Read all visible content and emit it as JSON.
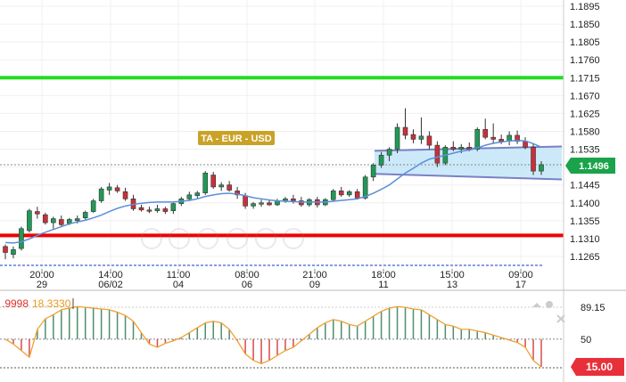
{
  "chart_data": {
    "type": "candlestick",
    "instrument_label": "TA - EUR - USD",
    "current_price_label": "1.1496",
    "y_ticks": [
      "1.1895",
      "1.1850",
      "1.1805",
      "1.1760",
      "1.1715",
      "1.1670",
      "1.1625",
      "1.1580",
      "1.1535",
      "1.1490",
      "1.1445",
      "1.1400",
      "1.1355",
      "1.1310",
      "1.1265"
    ],
    "x_ticks": [
      {
        "time": "20:00",
        "day": "29"
      },
      {
        "time": "14:00",
        "day": "06/02"
      },
      {
        "time": "11:00",
        "day": "04"
      },
      {
        "time": "08:00",
        "day": "06"
      },
      {
        "time": "21:00",
        "day": "09"
      },
      {
        "time": "18:00",
        "day": "11"
      },
      {
        "time": "15:00",
        "day": "13"
      },
      {
        "time": "09:00",
        "day": "17"
      }
    ],
    "ylim": [
      1.1245,
      1.1915
    ],
    "levels": {
      "resistance": 1.1715,
      "support": 1.1318,
      "lower_dotted": 1.1242,
      "price_line": 1.1496
    },
    "channel": {
      "upper": [
        [
          0,
          1.1531
        ],
        [
          1,
          1.1542
        ]
      ],
      "lower": [
        [
          0,
          1.1473
        ],
        [
          1,
          1.1459
        ]
      ]
    },
    "candles": [
      [
        1.129,
        1.1295,
        1.1258,
        1.1275
      ],
      [
        1.127,
        1.129,
        1.126,
        1.1282
      ],
      [
        1.1285,
        1.134,
        1.128,
        1.1335
      ],
      [
        1.133,
        1.1385,
        1.1325,
        1.138
      ],
      [
        1.1378,
        1.139,
        1.136,
        1.1372
      ],
      [
        1.137,
        1.1375,
        1.1345,
        1.135
      ],
      [
        1.135,
        1.1365,
        1.1335,
        1.136
      ],
      [
        1.1358,
        1.1368,
        1.134,
        1.1345
      ],
      [
        1.1348,
        1.1362,
        1.1344,
        1.1358
      ],
      [
        1.1355,
        1.1368,
        1.1348,
        1.136
      ],
      [
        1.1362,
        1.138,
        1.1358,
        1.1376
      ],
      [
        1.1378,
        1.141,
        1.1375,
        1.1405
      ],
      [
        1.1405,
        1.144,
        1.14,
        1.1435
      ],
      [
        1.1432,
        1.145,
        1.142,
        1.144
      ],
      [
        1.1438,
        1.1445,
        1.1425,
        1.143
      ],
      [
        1.1428,
        1.1438,
        1.1405,
        1.141
      ],
      [
        1.141,
        1.142,
        1.138,
        1.1385
      ],
      [
        1.1388,
        1.1395,
        1.1378,
        1.1382
      ],
      [
        1.1382,
        1.139,
        1.1374,
        1.138
      ],
      [
        1.138,
        1.1395,
        1.1375,
        1.1385
      ],
      [
        1.1385,
        1.139,
        1.1372,
        1.1378
      ],
      [
        1.138,
        1.14,
        1.1372,
        1.1398
      ],
      [
        1.1398,
        1.1415,
        1.1392,
        1.141
      ],
      [
        1.141,
        1.1428,
        1.1405,
        1.142
      ],
      [
        1.1418,
        1.143,
        1.1412,
        1.1425
      ],
      [
        1.1425,
        1.148,
        1.142,
        1.1475
      ],
      [
        1.147,
        1.1478,
        1.1435,
        1.144
      ],
      [
        1.144,
        1.1452,
        1.143,
        1.1445
      ],
      [
        1.1445,
        1.1455,
        1.1428,
        1.1432
      ],
      [
        1.143,
        1.144,
        1.141,
        1.142
      ],
      [
        1.1418,
        1.1425,
        1.1385,
        1.1392
      ],
      [
        1.1392,
        1.1402,
        1.1385,
        1.1398
      ],
      [
        1.1398,
        1.1408,
        1.139,
        1.14
      ],
      [
        1.14,
        1.1408,
        1.1392,
        1.1395
      ],
      [
        1.1395,
        1.141,
        1.1392,
        1.1405
      ],
      [
        1.1405,
        1.1415,
        1.14,
        1.141
      ],
      [
        1.141,
        1.142,
        1.1398,
        1.1405
      ],
      [
        1.1405,
        1.1415,
        1.139,
        1.1395
      ],
      [
        1.1395,
        1.1412,
        1.139,
        1.1408
      ],
      [
        1.1408,
        1.1415,
        1.1388,
        1.1395
      ],
      [
        1.1395,
        1.1412,
        1.1392,
        1.1408
      ],
      [
        1.1408,
        1.1435,
        1.1405,
        1.143
      ],
      [
        1.143,
        1.144,
        1.1415,
        1.142
      ],
      [
        1.142,
        1.1432,
        1.1415,
        1.1428
      ],
      [
        1.1428,
        1.1435,
        1.1408,
        1.1412
      ],
      [
        1.1412,
        1.147,
        1.1408,
        1.1465
      ],
      [
        1.1465,
        1.15,
        1.1455,
        1.1495
      ],
      [
        1.1495,
        1.1528,
        1.1488,
        1.152
      ],
      [
        1.152,
        1.154,
        1.1505,
        1.1535
      ],
      [
        1.1535,
        1.16,
        1.1525,
        1.159
      ],
      [
        1.159,
        1.1638,
        1.156,
        1.157
      ],
      [
        1.1572,
        1.1585,
        1.155,
        1.156
      ],
      [
        1.156,
        1.1615,
        1.1548,
        1.1568
      ],
      [
        1.1568,
        1.158,
        1.1535,
        1.1545
      ],
      [
        1.1545,
        1.1555,
        1.149,
        1.15
      ],
      [
        1.15,
        1.1545,
        1.1495,
        1.154
      ],
      [
        1.154,
        1.1555,
        1.153,
        1.1535
      ],
      [
        1.1535,
        1.1548,
        1.1525,
        1.154
      ],
      [
        1.154,
        1.1552,
        1.153,
        1.1535
      ],
      [
        1.1535,
        1.159,
        1.153,
        1.1585
      ],
      [
        1.1585,
        1.1612,
        1.156,
        1.1565
      ],
      [
        1.1565,
        1.16,
        1.1548,
        1.156
      ],
      [
        1.156,
        1.1572,
        1.1548,
        1.1555
      ],
      [
        1.1555,
        1.158,
        1.1545,
        1.157
      ],
      [
        1.157,
        1.1582,
        1.1548,
        1.1555
      ],
      [
        1.1555,
        1.1565,
        1.1535,
        1.154
      ],
      [
        1.154,
        1.1548,
        1.147,
        1.148
      ],
      [
        1.148,
        1.1505,
        1.147,
        1.1496
      ]
    ],
    "moving_average": [
      1.13,
      1.1299,
      1.1302,
      1.1309,
      1.1318,
      1.1326,
      1.1333,
      1.134,
      1.1347,
      1.1352,
      1.1356,
      1.1362,
      1.1369,
      1.1378,
      1.1386,
      1.1392,
      1.1396,
      1.1399,
      1.1401,
      1.1402,
      1.1402,
      1.1402,
      1.1404,
      1.1406,
      1.141,
      1.1416,
      1.142,
      1.1423,
      1.1424,
      1.1422,
      1.1418,
      1.1413,
      1.141,
      1.1407,
      1.1405,
      1.1404,
      1.1403,
      1.1402,
      1.1402,
      1.1402,
      1.1402,
      1.1404,
      1.1406,
      1.1408,
      1.141,
      1.1416,
      1.1424,
      1.1434,
      1.1445,
      1.146,
      1.1475,
      1.1487,
      1.15,
      1.151,
      1.1515,
      1.152,
      1.1525,
      1.153,
      1.1533,
      1.1538,
      1.1545,
      1.155,
      1.1553,
      1.1556,
      1.1557,
      1.1556,
      1.1549,
      1.154
    ],
    "indicator": {
      "label_prefix": ".9998",
      "label_value": "18.3330",
      "y_ticks": [
        "89.15",
        "50"
      ],
      "current_label": "15.00",
      "ylim": [
        0,
        100
      ],
      "upper_level": 89.15,
      "mid_level": 50,
      "lower_level": 15,
      "values": [
        50,
        44,
        36,
        28,
        62,
        75,
        80,
        86,
        88,
        90,
        89,
        88,
        87,
        86,
        83,
        79,
        72,
        58,
        44,
        40,
        45,
        48,
        52,
        58,
        64,
        70,
        72,
        70,
        62,
        48,
        32,
        24,
        20,
        24,
        30,
        36,
        40,
        48,
        56,
        64,
        70,
        74,
        72,
        68,
        66,
        72,
        78,
        84,
        88,
        90,
        89,
        87,
        86,
        80,
        74,
        68,
        66,
        62,
        62,
        60,
        58,
        55,
        52,
        49,
        46,
        40,
        24,
        16
      ]
    }
  }
}
